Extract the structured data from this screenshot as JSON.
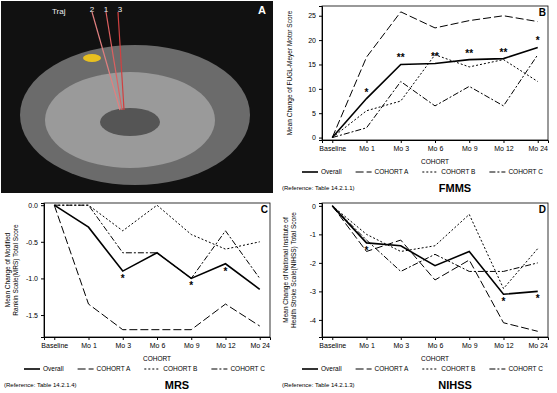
{
  "image_panel": {
    "panel_label": "A",
    "labels": [
      "Traj",
      "2",
      "1",
      "3"
    ]
  },
  "chart_data": [
    {
      "type": "line",
      "panel_label": "B",
      "title": "FMMS",
      "reference": "(Reference: Table 14.2.1.1)",
      "y_label": "Mean Change of FUGL-Meyer Motor Score",
      "legend_title": "COHORT",
      "legend": "bottom",
      "categories": [
        "Baseline",
        "Mo 1",
        "Mo 3",
        "Mo 6",
        "Mo 9",
        "Mo 12",
        "Mo 24"
      ],
      "ylim": [
        -0.5,
        27
      ],
      "yticks": [
        0,
        5,
        10,
        15,
        20,
        25
      ],
      "series": [
        {
          "name": "Overall",
          "color": "#000000",
          "line_style": "solid",
          "values": [
            0,
            8,
            15,
            15.2,
            16,
            16.2,
            18.5
          ]
        },
        {
          "name": "COHORT A",
          "color": "#000000",
          "line_style": "long-dash",
          "values": [
            0,
            16.5,
            25.8,
            22.5,
            24,
            25,
            23.8
          ]
        },
        {
          "name": "COHORT B",
          "color": "#000000",
          "line_style": "dotted",
          "values": [
            0,
            5.5,
            7.5,
            17,
            14.5,
            16,
            11.5
          ]
        },
        {
          "name": "COHORT C",
          "color": "#000000",
          "line_style": "dash-dot",
          "values": [
            0,
            2,
            11.5,
            6.5,
            10.5,
            6.5,
            17
          ]
        }
      ],
      "annotations": [
        {
          "text": "*",
          "category": "Mo 1"
        },
        {
          "text": "**",
          "category": "Mo 3"
        },
        {
          "text": "**",
          "category": "Mo 6"
        },
        {
          "text": "**",
          "category": "Mo 9"
        },
        {
          "text": "**",
          "category": "Mo 12"
        },
        {
          "text": "*",
          "category": "Mo 24"
        }
      ]
    },
    {
      "type": "line",
      "panel_label": "C",
      "title": "MRS",
      "reference": "(Reference: Table 14.2.1.4)",
      "y_label": "Mean Change of Modified Rankin Scale(MRS) Total Score",
      "legend_title": "COHORT",
      "legend": "bottom",
      "categories": [
        "Baseline",
        "Mo 1",
        "Mo 3",
        "Mo 6",
        "Mo 9",
        "Mo 12",
        "Mo 24"
      ],
      "ylim": [
        -1.8,
        0.03
      ],
      "yticks": [
        {
          "value": 0,
          "label": "0.0"
        },
        -0.5,
        {
          "value": -1,
          "label": "-1.0"
        },
        -1.5
      ],
      "series": [
        {
          "name": "Overall",
          "color": "#000000",
          "line_style": "solid",
          "values": [
            0,
            -0.3,
            -0.9,
            -0.65,
            -1.0,
            -0.8,
            -1.15
          ]
        },
        {
          "name": "COHORT A",
          "color": "#000000",
          "line_style": "long-dash",
          "values": [
            0,
            -1.35,
            -1.7,
            -1.7,
            -1.7,
            -1.35,
            -1.65
          ]
        },
        {
          "name": "COHORT B",
          "color": "#000000",
          "line_style": "dotted",
          "values": [
            0,
            0,
            -0.35,
            0,
            -0.4,
            -0.6,
            -0.5
          ]
        },
        {
          "name": "COHORT C",
          "color": "#000000",
          "line_style": "dash-dot",
          "values": [
            0,
            0,
            -0.65,
            -0.65,
            -1.0,
            -0.35,
            -1.0
          ]
        }
      ],
      "annotations": [
        {
          "text": "*",
          "category": "Mo 3"
        },
        {
          "text": "*",
          "category": "Mo 9"
        },
        {
          "text": "*",
          "category": "Mo 12"
        }
      ]
    },
    {
      "type": "line",
      "panel_label": "D",
      "title": "NIHSS",
      "reference": "(Reference: Table 14.2.1.3)",
      "y_label": "Mean Change of National Institute of Health Stroke Scale(NIHSS) Total Score",
      "legend_title": "COHORT",
      "legend": "bottom",
      "categories": [
        "Baseline",
        "Mo 1",
        "Mo 3",
        "Mo 6",
        "Mo 9",
        "Mo 12",
        "Mo 24"
      ],
      "ylim": [
        -4.6,
        0.1
      ],
      "yticks": [
        0,
        -1,
        -2,
        -3,
        -4
      ],
      "series": [
        {
          "name": "Overall",
          "color": "#000000",
          "line_style": "solid",
          "values": [
            0,
            -1.3,
            -1.4,
            -2.1,
            -1.6,
            -3.1,
            -3.0
          ]
        },
        {
          "name": "COHORT A",
          "color": "#000000",
          "line_style": "long-dash",
          "values": [
            0,
            -1.6,
            -1.2,
            -2.6,
            -1.9,
            -4.1,
            -4.4
          ]
        },
        {
          "name": "COHORT B",
          "color": "#000000",
          "line_style": "dotted",
          "values": [
            0,
            -1.0,
            -1.6,
            -1.4,
            -0.3,
            -2.9,
            -1.5
          ]
        },
        {
          "name": "COHORT C",
          "color": "#000000",
          "line_style": "dash-dot",
          "values": [
            0,
            -1.2,
            -2.3,
            -1.7,
            -2.3,
            -2.3,
            -2.0
          ]
        }
      ],
      "annotations": [
        {
          "text": "*",
          "category": "Mo 1"
        },
        {
          "text": "*",
          "category": "Mo 12"
        },
        {
          "text": "*",
          "category": "Mo 24"
        }
      ]
    }
  ]
}
